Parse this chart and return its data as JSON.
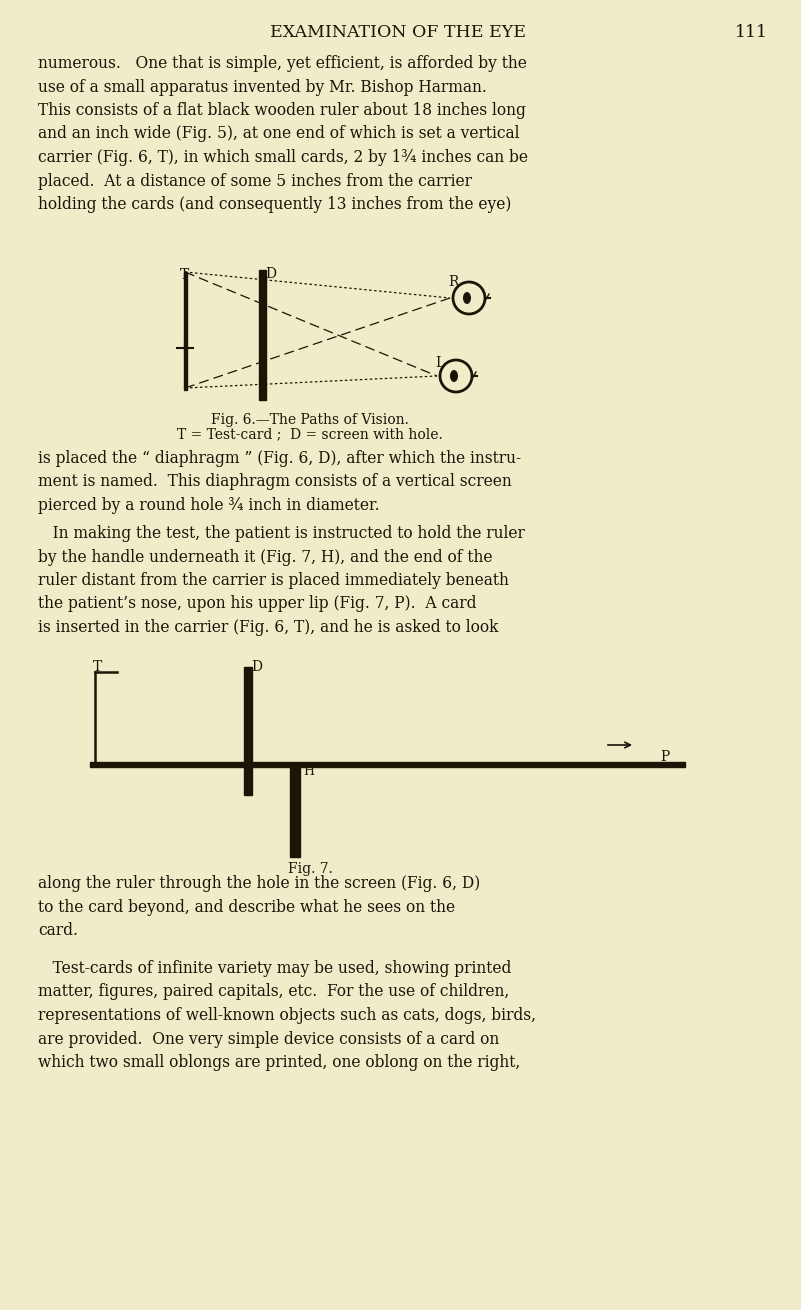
{
  "bg_color": "#f0ecca",
  "dark": "#1a1506",
  "page_title": "EXAMINATION OF THE EYE",
  "page_number": "111",
  "para1_lines": [
    "numerous.   One that is simple, yet efficient, is afforded by the",
    "use of a small apparatus invented by Mr. Bishop Harman.",
    "This consists of a flat black wooden ruler about 18 inches long",
    "and an inch wide (Fig. 5), at one end of which is set a vertical",
    "carrier (Fig. 6, T), in which small cards, 2 by 1¾ inches can be",
    "placed.  At a distance of some 5 inches from the carrier",
    "holding the cards (and consequently 13 inches from the eye)"
  ],
  "fig6_cap1": "Fig. 6.—The Paths of Vision.",
  "fig6_cap2": "T = Test-card ;  D = screen with hole.",
  "para2_lines": [
    "is placed the “ diaphragm ” (Fig. 6, D), after which the instru-",
    "ment is named.  This diaphragm consists of a vertical screen",
    "pierced by a round hole ¾ inch in diameter."
  ],
  "para3_lines": [
    "   In making the test, the patient is instructed to hold the ruler",
    "by the handle underneath it (Fig. 7, H), and the end of the",
    "ruler distant from the carrier is placed immediately beneath",
    "the patient’s nose, upon his upper lip (Fig. 7, P).  A card",
    "is inserted in the carrier (Fig. 6, T), and he is asked to look"
  ],
  "fig7_cap": "Fig. 7.",
  "para4_lines": [
    "along the ruler through the hole in the screen (Fig. 6, D)",
    "to the card beyond, and describe what he sees on the",
    "card."
  ],
  "para5_lines": [
    "   Test-cards of infinite variety may be used, showing printed",
    "matter, figures, paired capitals, etc.  For the use of children,",
    "representations of well-known objects such as cats, dogs, birds,",
    "are provided.  One very simple device consists of a card on",
    "which two small oblongs are printed, one oblong on the right,"
  ]
}
